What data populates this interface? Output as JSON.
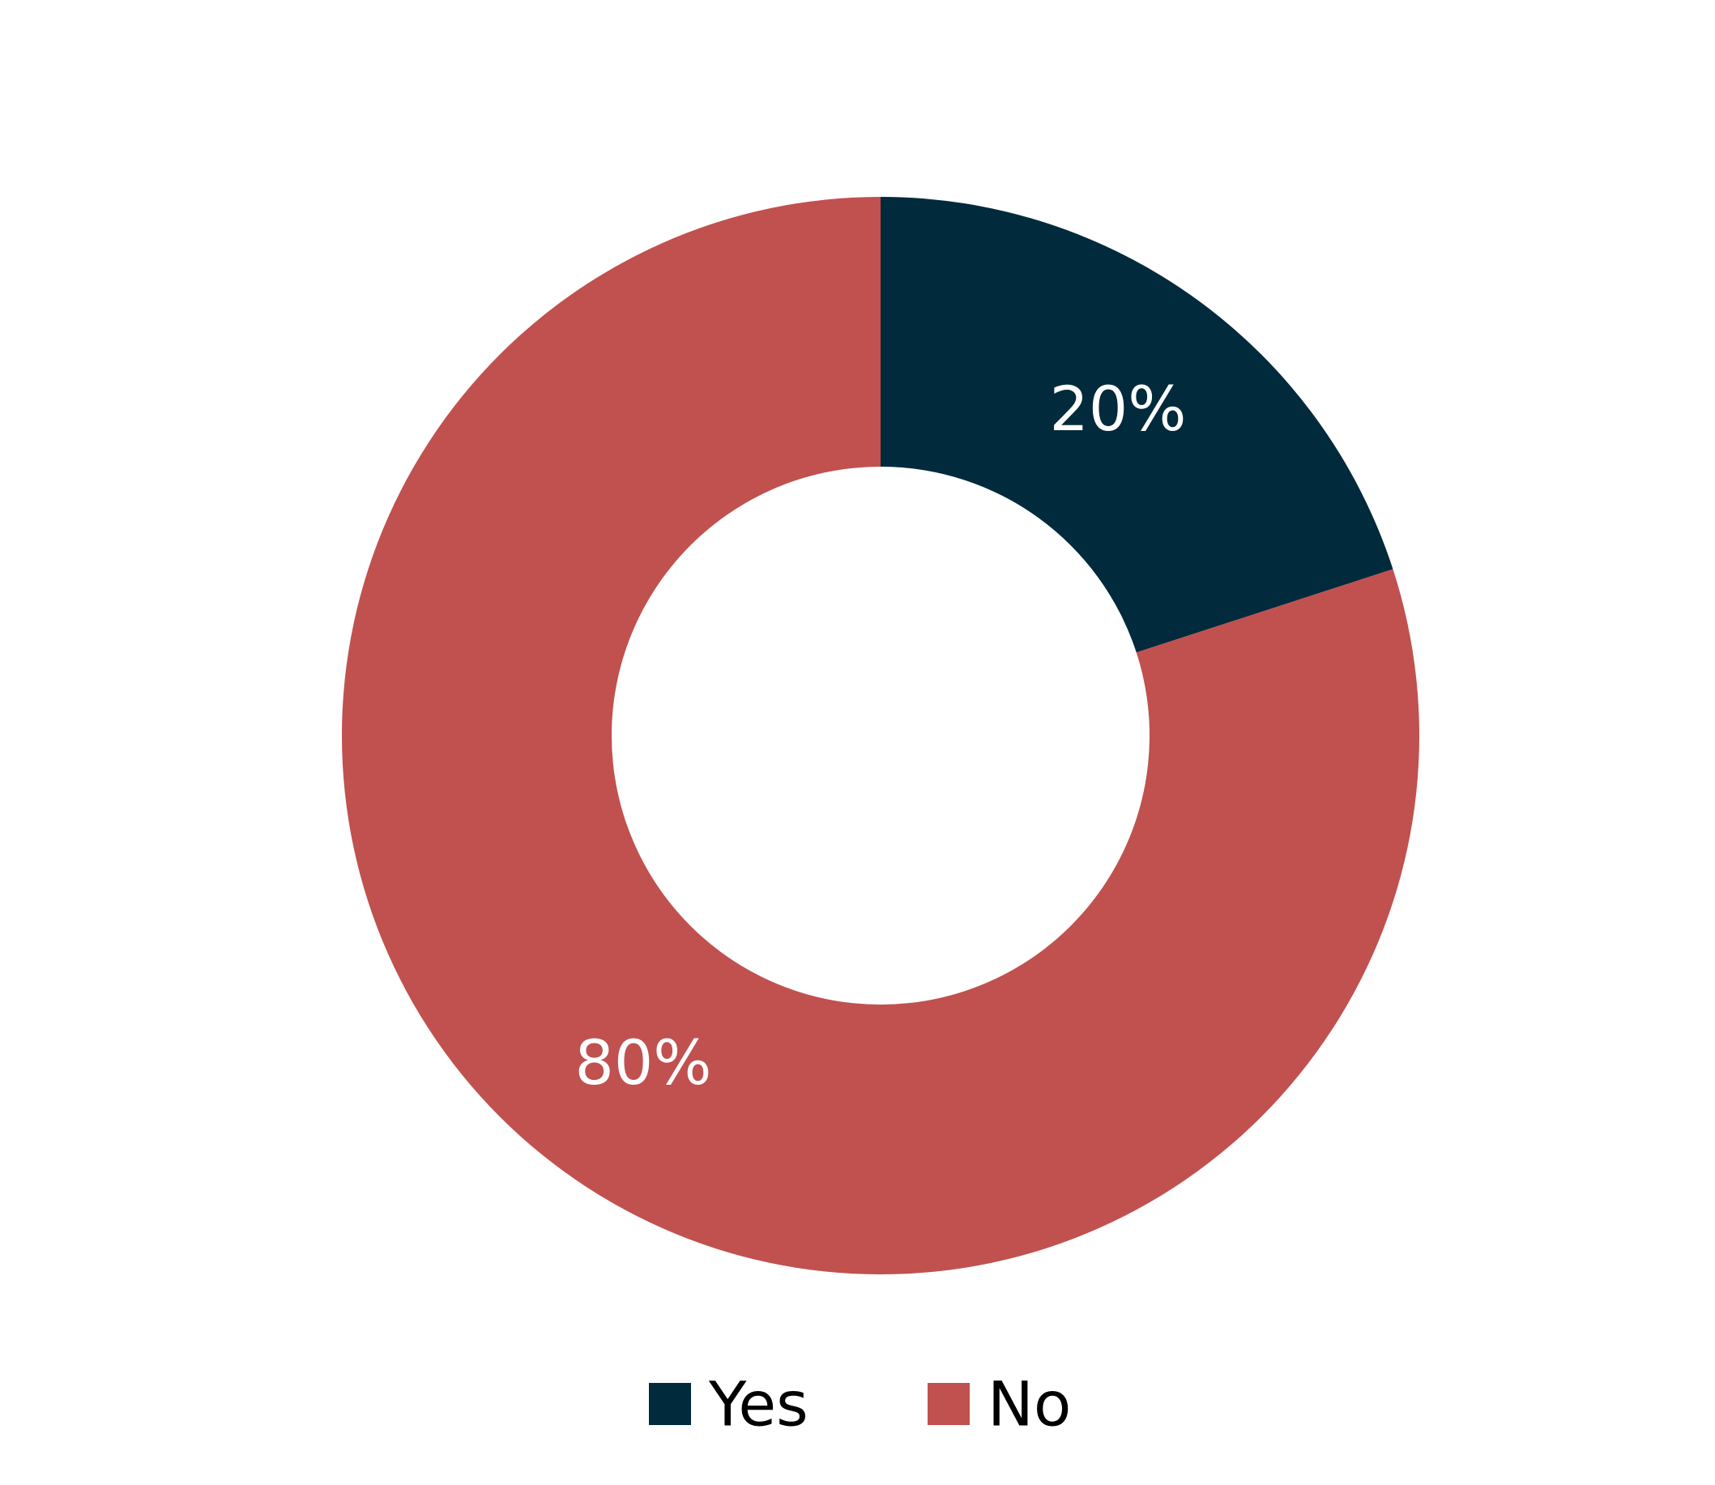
{
  "chart_data": {
    "type": "pie",
    "variant": "donut",
    "title": "",
    "categories": [
      "Yes",
      "No"
    ],
    "values": [
      20,
      80
    ],
    "labels": [
      "20%",
      "80%"
    ],
    "colors": [
      "#012a3c",
      "#c0514f"
    ],
    "legend": {
      "position": "bottom",
      "entries": [
        "Yes",
        "No"
      ]
    }
  }
}
